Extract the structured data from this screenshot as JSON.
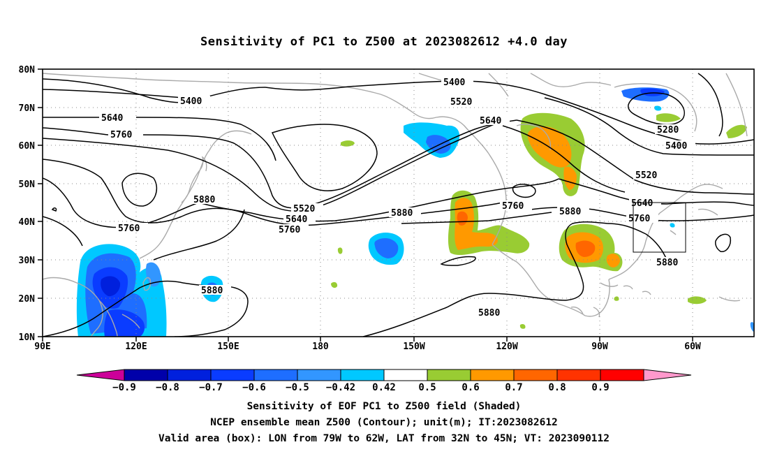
{
  "title": "Sensitivity of PC1 to Z500 at 2023082612 +4.0 day",
  "map": {
    "lat_ticks": [
      "80N",
      "70N",
      "60N",
      "50N",
      "40N",
      "30N",
      "20N",
      "10N"
    ],
    "lon_ticks": [
      "90E",
      "120E",
      "150E",
      "180",
      "150W",
      "120W",
      "90W",
      "60W"
    ],
    "grid": "dotted",
    "coastline_color": "#aaaaaa",
    "contour_color": "#000000",
    "valid_box": {
      "lon": [
        "79W",
        "62W"
      ],
      "lat": [
        "32N",
        "45N"
      ]
    }
  },
  "contour_labels": [
    "5400",
    "5400",
    "5520",
    "5640",
    "5760",
    "5640",
    "5760",
    "5880",
    "5880",
    "5520",
    "5640",
    "5760",
    "5880",
    "5760",
    "5880",
    "5280",
    "5400",
    "5520",
    "5640",
    "5760",
    "5880",
    "5880"
  ],
  "colorbar": {
    "labels": [
      "-0.9",
      "-0.8",
      "-0.7",
      "-0.6",
      "-0.5",
      "-0.42",
      "0.42",
      "0.5",
      "0.6",
      "0.7",
      "0.8",
      "0.9"
    ],
    "colors": [
      "#cc0099",
      "#0000aa",
      "#0020dd",
      "#0a3cff",
      "#1e6eff",
      "#3296ff",
      "#00c8ff",
      "#ffffff",
      "#99cc33",
      "#ff9900",
      "#ff6600",
      "#ff3300",
      "#ff0000",
      "#ff99cc"
    ]
  },
  "captions": {
    "line1": "Sensitivity of EOF PC1 to Z500 field (Shaded)",
    "line2": "NCEP ensemble mean Z500 (Contour); unit(m); IT:2023082612",
    "line3": "Valid area (box): LON from 79W to 62W, LAT from 32N to 45N; VT: 2023090112"
  }
}
